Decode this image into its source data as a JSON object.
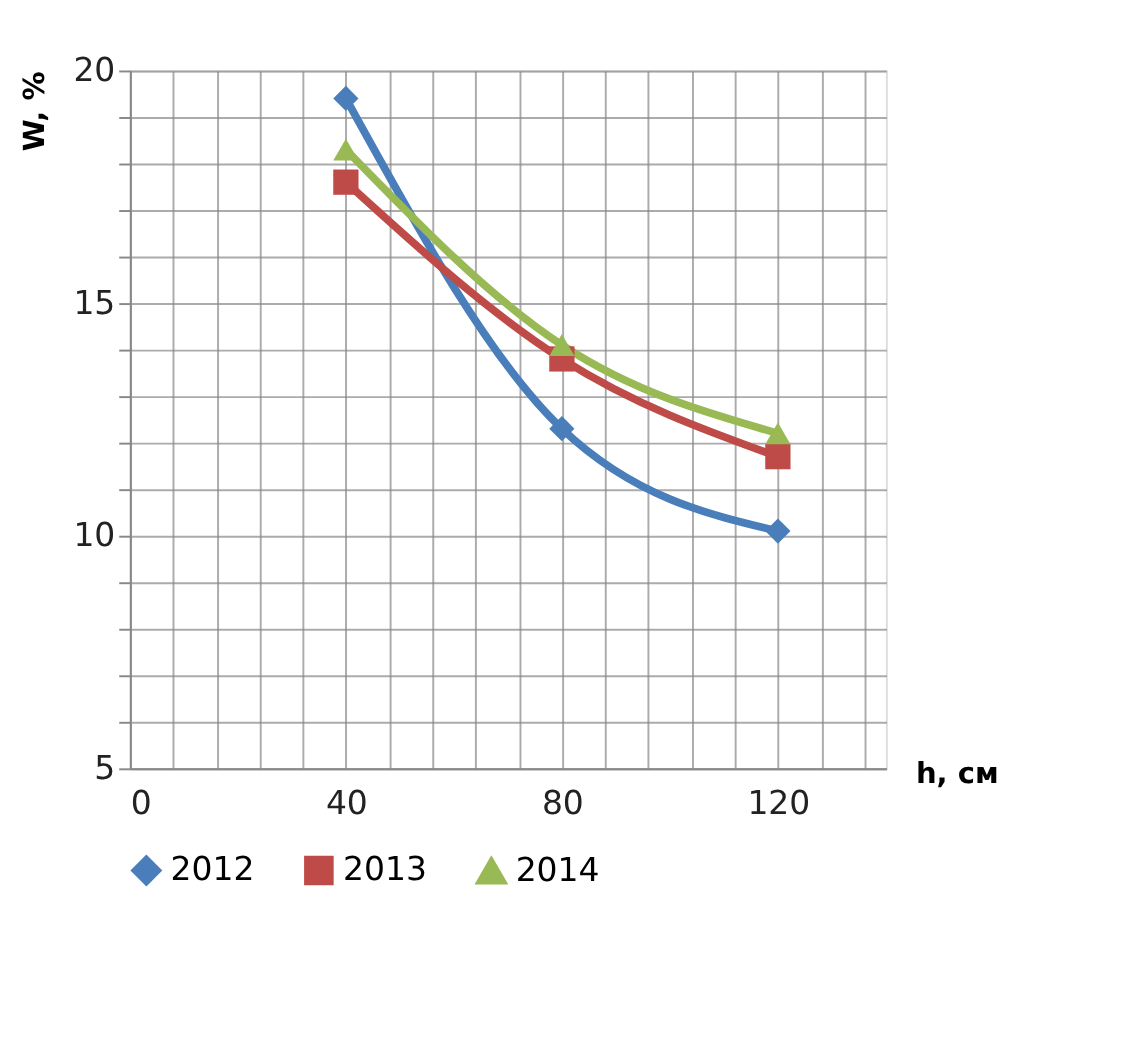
{
  "chart_data": {
    "type": "line",
    "xlabel": "h, см",
    "ylabel": "W, %",
    "x": [
      40,
      80,
      120
    ],
    "series": [
      {
        "name": "2012",
        "color": "#4a7ebb",
        "marker": "diamond",
        "values": [
          19.4,
          12.3,
          10.1
        ]
      },
      {
        "name": "2013",
        "color": "#be4b48",
        "marker": "square",
        "values": [
          17.6,
          13.8,
          11.7
        ]
      },
      {
        "name": "2014",
        "color": "#98b954",
        "marker": "triangle",
        "values": [
          18.3,
          14.1,
          12.2
        ]
      }
    ],
    "xlim": [
      0,
      140
    ],
    "xticks": [
      0,
      {
        "value": 8,
        "label": null
      },
      {
        "value": 16,
        "label": null
      },
      {
        "value": 24,
        "label": null
      },
      {
        "value": 32,
        "label": null
      },
      40,
      {
        "value": 48,
        "label": null
      },
      {
        "value": 56,
        "label": null
      },
      {
        "value": 64,
        "label": null
      },
      {
        "value": 72,
        "label": null
      },
      80,
      {
        "value": 88,
        "label": null
      },
      {
        "value": 96,
        "label": null
      },
      {
        "value": 104,
        "label": null
      },
      {
        "value": 112,
        "label": null
      },
      120,
      {
        "value": 128,
        "label": null
      },
      {
        "value": 136,
        "label": null
      }
    ],
    "ylim": [
      5,
      20
    ],
    "yticks": [
      5,
      {
        "value": 6,
        "label": null
      },
      {
        "value": 7,
        "label": null
      },
      {
        "value": 8,
        "label": null
      },
      {
        "value": 9,
        "label": null
      },
      10,
      {
        "value": 11,
        "label": null
      },
      {
        "value": 12,
        "label": null
      },
      {
        "value": 13,
        "label": null
      },
      {
        "value": 14,
        "label": null
      },
      15,
      {
        "value": 16,
        "label": null
      },
      {
        "value": 17,
        "label": null
      },
      {
        "value": 18,
        "label": null
      },
      {
        "value": 19,
        "label": null
      },
      20
    ],
    "grid": true,
    "legend": "bottom",
    "line_style": "solid"
  }
}
